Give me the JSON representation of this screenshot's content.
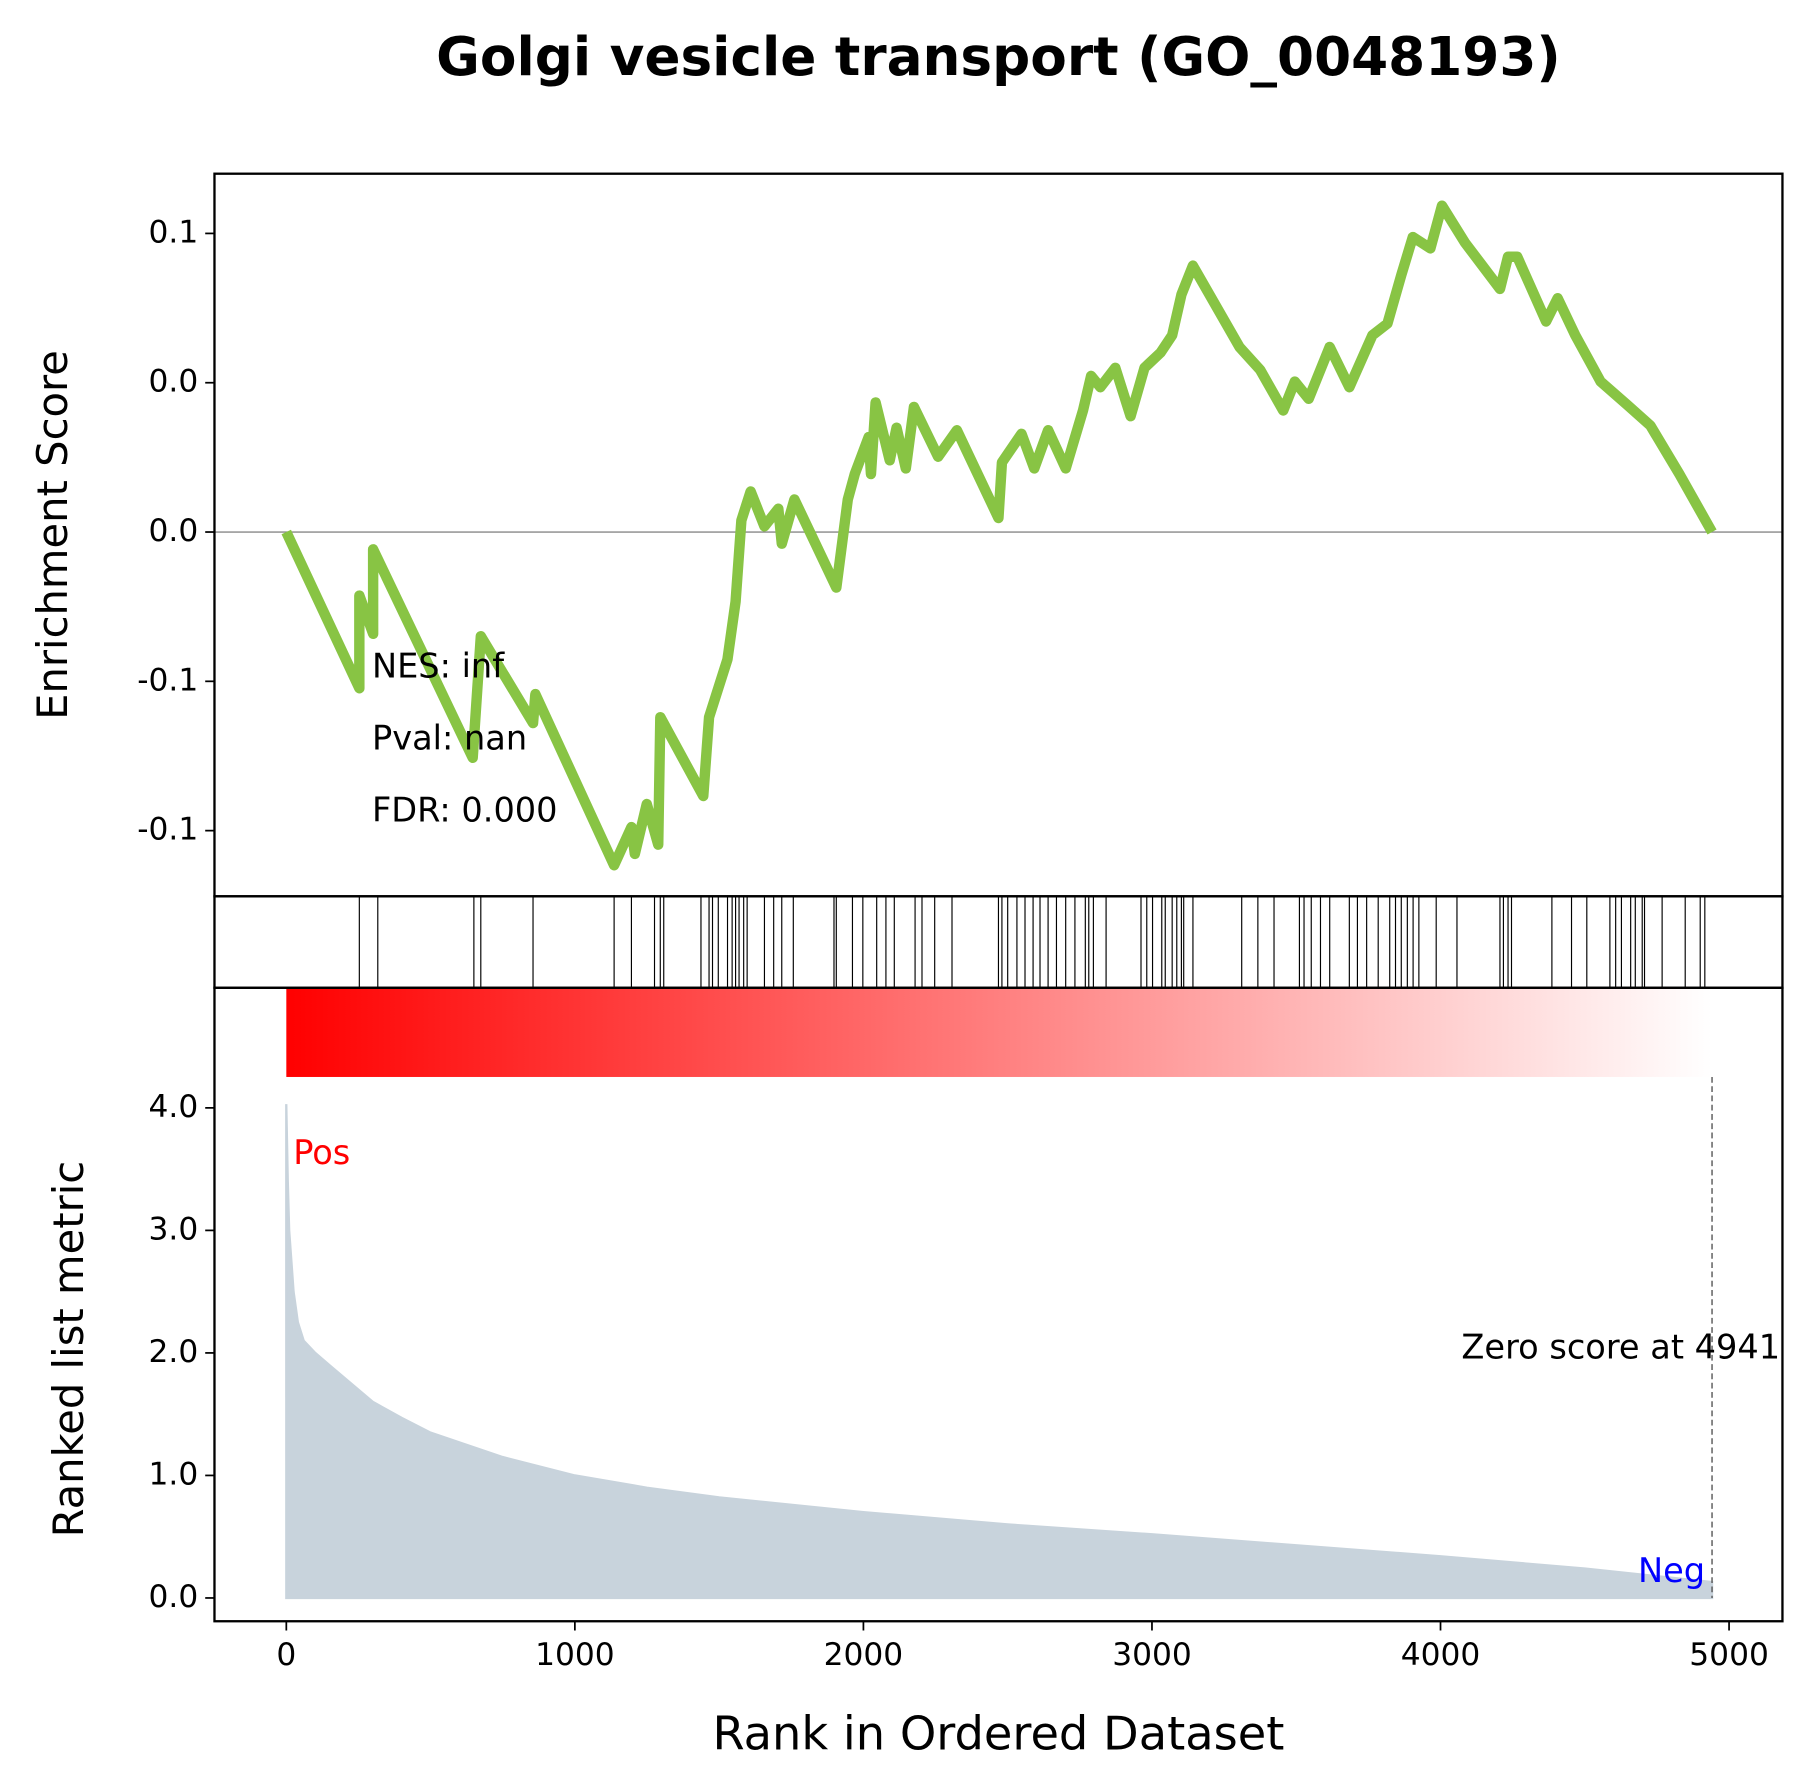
{
  "chart_data": [
    {
      "type": "line",
      "title": "Golgi vesicle transport (GO_0048193)",
      "ylabel": "Enrichment Score",
      "color": "#88c444",
      "x": [
        0,
        253,
        253,
        301,
        301,
        646,
        674,
        855,
        863,
        1136,
        1196,
        1208,
        1249,
        1289,
        1296,
        1445,
        1465,
        1529,
        1557,
        1577,
        1609,
        1657,
        1705,
        1717,
        1761,
        1906,
        1946,
        1970,
        2018,
        2026,
        2042,
        2091,
        2115,
        2147,
        2175,
        2259,
        2324,
        2468,
        2480,
        2548,
        2592,
        2640,
        2701,
        2761,
        2789,
        2821,
        2873,
        2926,
        2974,
        3030,
        3070,
        3102,
        3142,
        3303,
        3375,
        3455,
        3495,
        3543,
        3616,
        3684,
        3764,
        3816,
        3864,
        3904,
        3965,
        4005,
        4085,
        4206,
        4234,
        4266,
        4366,
        4406,
        4467,
        4555,
        4647,
        4727,
        4828,
        4941
      ],
      "values": [
        0,
        -0.0523,
        -0.0213,
        -0.0341,
        -0.0058,
        -0.0756,
        -0.0349,
        -0.064,
        -0.0543,
        -0.1116,
        -0.0988,
        -0.1078,
        -0.0911,
        -0.1047,
        -0.062,
        -0.0884,
        -0.062,
        -0.0426,
        -0.0233,
        0.0039,
        0.0136,
        0.0019,
        0.0078,
        -0.0039,
        0.0109,
        -0.0186,
        0.0109,
        0.0194,
        0.0318,
        0.0194,
        0.0434,
        0.024,
        0.0349,
        0.0213,
        0.0419,
        0.0252,
        0.0341,
        0.0047,
        0.0233,
        0.0329,
        0.0213,
        0.0341,
        0.0213,
        0.0407,
        0.0523,
        0.0485,
        0.055,
        0.0388,
        0.055,
        0.0601,
        0.0659,
        0.0795,
        0.0892,
        0.062,
        0.0543,
        0.0407,
        0.0504,
        0.0446,
        0.062,
        0.0485,
        0.0659,
        0.0698,
        0.086,
        0.0988,
        0.095,
        0.1093,
        0.0969,
        0.0814,
        0.0922,
        0.0922,
        0.0705,
        0.0783,
        0.0659,
        0.0504,
        0.0426,
        0.0357,
        0.0194,
        0
      ],
      "xlim": [
        -249,
        5185
      ],
      "ylim": [
        -0.122,
        0.12
      ],
      "yticks": [
        {
          "value": -0.1,
          "label": "-0.1"
        },
        {
          "value": -0.05,
          "label": "-0.1"
        },
        {
          "value": 0,
          "label": "0.0"
        },
        {
          "value": 0.05,
          "label": "0.0"
        },
        {
          "value": 0.1,
          "label": "0.1"
        }
      ],
      "zero_line": true,
      "annotations": [
        "NES: inf",
        "Pval: nan",
        "FDR: 0.000"
      ]
    },
    {
      "type": "hits",
      "xlim": [
        -249,
        5185
      ],
      "x": [
        253,
        317,
        650,
        674,
        855,
        1136,
        1196,
        1276,
        1296,
        1308,
        1437,
        1465,
        1477,
        1497,
        1529,
        1545,
        1557,
        1569,
        1585,
        1597,
        1657,
        1689,
        1717,
        1757,
        1898,
        1906,
        1962,
        1998,
        2046,
        2078,
        2107,
        2179,
        2203,
        2247,
        2307,
        2468,
        2480,
        2500,
        2532,
        2560,
        2588,
        2612,
        2640,
        2669,
        2701,
        2733,
        2769,
        2781,
        2797,
        2841,
        2962,
        2982,
        3002,
        3034,
        3046,
        3070,
        3086,
        3102,
        3110,
        3142,
        3311,
        3367,
        3423,
        3511,
        3527,
        3552,
        3584,
        3616,
        3684,
        3712,
        3744,
        3784,
        3824,
        3844,
        3864,
        3885,
        3905,
        3925,
        3985,
        4057,
        4206,
        4218,
        4234,
        4246,
        4386,
        4454,
        4507,
        4587,
        4607,
        4627,
        4659,
        4675,
        4699,
        4707,
        4768,
        4848,
        4900,
        4916
      ]
    },
    {
      "type": "area",
      "ylabel": "Ranked list metric",
      "xlabel": "Rank in Ordered Dataset",
      "color": "#c8d3dc",
      "x": [
        0,
        5,
        10,
        25,
        40,
        60,
        100,
        150,
        200,
        300,
        400,
        500,
        750,
        1000,
        1250,
        1500,
        2000,
        2500,
        3000,
        3500,
        4000,
        4500,
        4941
      ],
      "values": [
        4.03,
        3.4,
        3.0,
        2.5,
        2.25,
        2.1,
        2.0,
        1.9,
        1.8,
        1.6,
        1.47,
        1.35,
        1.15,
        1.0,
        0.9,
        0.82,
        0.7,
        0.6,
        0.52,
        0.43,
        0.34,
        0.24,
        0.13
      ],
      "xlim": [
        -249,
        5185
      ],
      "ylim": [
        -0.19,
        4.98
      ],
      "xticks": [
        0,
        1000,
        2000,
        3000,
        4000,
        5000
      ],
      "yticks": [
        {
          "value": 0,
          "label": "0.0"
        },
        {
          "value": 1,
          "label": "1.0"
        },
        {
          "value": 2,
          "label": "2.0"
        },
        {
          "value": 3,
          "label": "3.0"
        },
        {
          "value": 4,
          "label": "4.0"
        }
      ],
      "pos_label": "Pos",
      "neg_label": "Neg",
      "zero_score_text": "Zero score at 4941",
      "zero_rank": 4941,
      "gradient": [
        "#ff0000",
        "#ffffff"
      ]
    }
  ]
}
